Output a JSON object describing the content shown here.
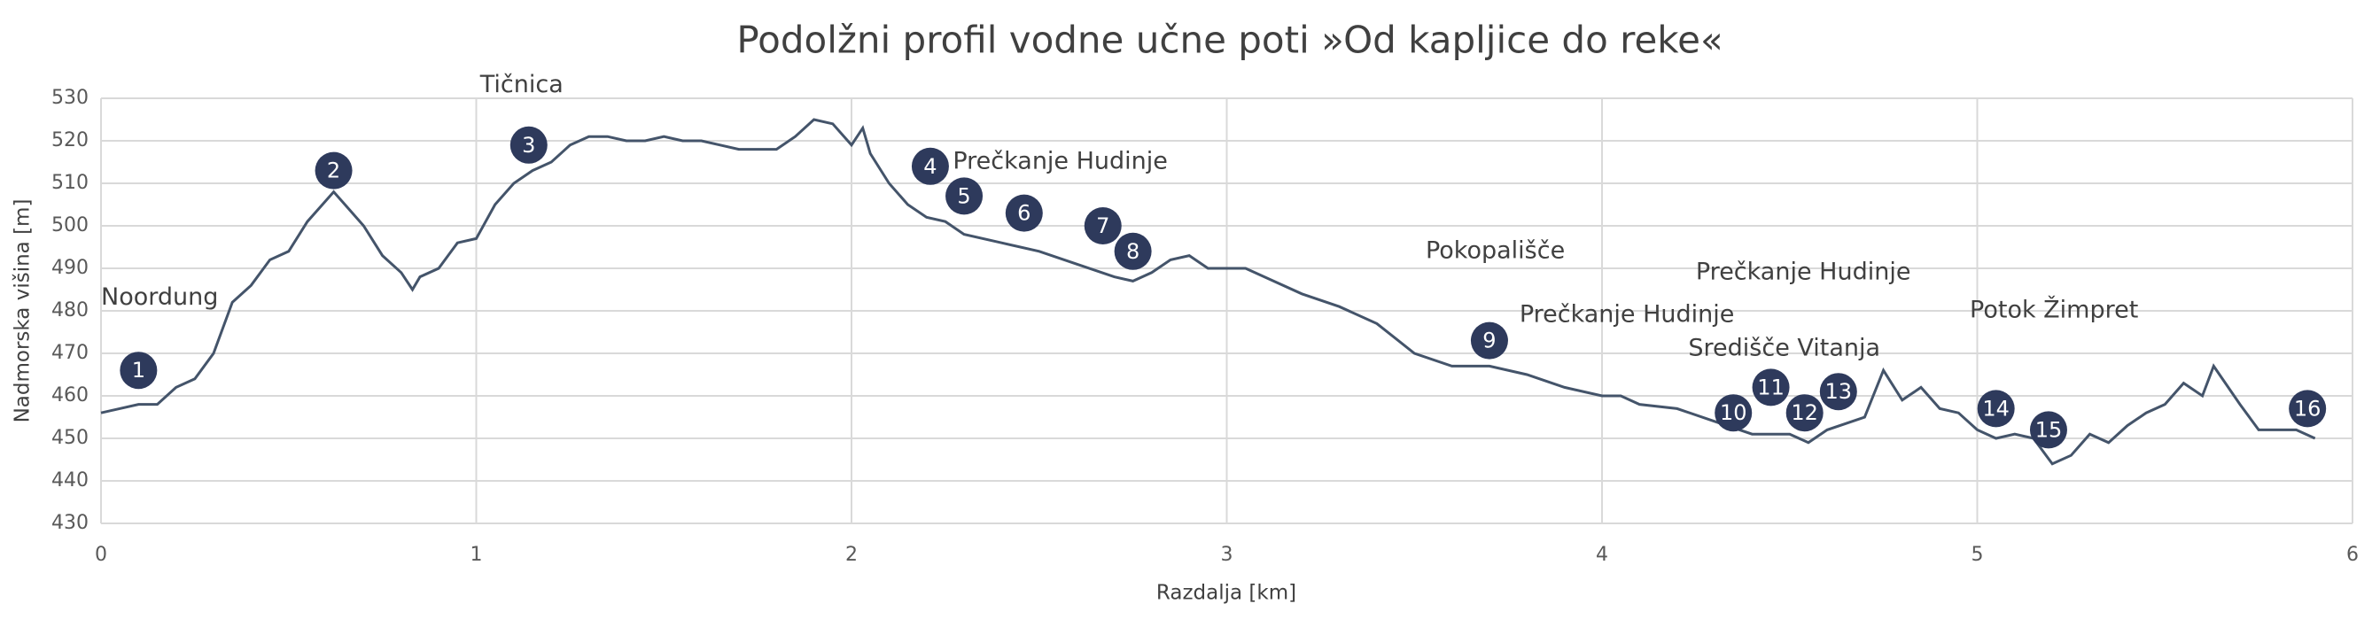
{
  "chart_data": {
    "type": "line",
    "title": "Podolžni profil vodne učne poti »Od kapljice do reke«",
    "x_label": "Razdalja [km]",
    "y_label": "Nadmorska višina [m]",
    "color": "#44546a",
    "grid": true,
    "xlim": [
      0,
      6
    ],
    "xticks": [
      0,
      1,
      2,
      3,
      4,
      5,
      6
    ],
    "ylim": [
      430,
      530
    ],
    "yticks": [
      430,
      440,
      450,
      460,
      470,
      480,
      490,
      500,
      510,
      520,
      530
    ],
    "x": [
      0,
      0.1,
      0.15,
      0.2,
      0.25,
      0.3,
      0.35,
      0.4,
      0.45,
      0.5,
      0.55,
      0.6,
      0.62,
      0.65,
      0.7,
      0.75,
      0.8,
      0.83,
      0.85,
      0.9,
      0.95,
      1.0,
      1.05,
      1.1,
      1.15,
      1.2,
      1.25,
      1.3,
      1.35,
      1.4,
      1.45,
      1.5,
      1.55,
      1.6,
      1.65,
      1.7,
      1.75,
      1.8,
      1.85,
      1.9,
      1.95,
      2.0,
      2.03,
      2.05,
      2.1,
      2.15,
      2.2,
      2.25,
      2.3,
      2.4,
      2.5,
      2.6,
      2.7,
      2.75,
      2.8,
      2.85,
      2.9,
      2.95,
      3.0,
      3.05,
      3.1,
      3.2,
      3.3,
      3.4,
      3.5,
      3.6,
      3.7,
      3.8,
      3.9,
      4.0,
      4.05,
      4.1,
      4.2,
      4.3,
      4.4,
      4.5,
      4.55,
      4.6,
      4.7,
      4.75,
      4.8,
      4.85,
      4.9,
      4.95,
      5.0,
      5.05,
      5.1,
      5.15,
      5.2,
      5.25,
      5.3,
      5.35,
      5.4,
      5.45,
      5.5,
      5.55,
      5.6,
      5.63,
      5.7,
      5.75,
      5.8,
      5.85,
      5.9
    ],
    "values": [
      456,
      458,
      458,
      462,
      464,
      470,
      482,
      486,
      492,
      494,
      501,
      506,
      508,
      505,
      500,
      493,
      489,
      485,
      488,
      490,
      496,
      497,
      505,
      510,
      513,
      515,
      519,
      521,
      521,
      520,
      520,
      521,
      520,
      520,
      519,
      518,
      518,
      518,
      521,
      525,
      524,
      519,
      523,
      517,
      510,
      505,
      502,
      501,
      498,
      496,
      494,
      491,
      488,
      487,
      489,
      492,
      493,
      490,
      490,
      490,
      488,
      484,
      481,
      477,
      470,
      467,
      467,
      465,
      462,
      460,
      460,
      458,
      457,
      454,
      451,
      451,
      449,
      452,
      455,
      466,
      459,
      462,
      457,
      456,
      452,
      450,
      451,
      450,
      444,
      446,
      451,
      449,
      453,
      456,
      458,
      463,
      460,
      467,
      458,
      452,
      452,
      452,
      450
    ],
    "markers": {
      "color": "#2e3a5c",
      "labels": [
        "1",
        "2",
        "3",
        "4",
        "5",
        "6",
        "7",
        "8",
        "9",
        "10",
        "11",
        "12",
        "13",
        "14",
        "15",
        "16"
      ],
      "x": [
        0.1,
        0.62,
        1.14,
        2.21,
        2.3,
        2.46,
        2.67,
        2.75,
        3.7,
        4.35,
        4.45,
        4.54,
        4.63,
        5.05,
        5.19,
        5.88
      ],
      "y": [
        466,
        513,
        519,
        514,
        507,
        503,
        500,
        494,
        473,
        456,
        462,
        456,
        461,
        457,
        452,
        457
      ]
    },
    "annotations": [
      "Noordung",
      "Tičnica",
      "Prečkanje Hudinje",
      "Pokopališče",
      "Prečkanje Hudinje",
      "Prečkanje Hudinje",
      "Središče Vitanja",
      "Potok Žimpret"
    ]
  }
}
